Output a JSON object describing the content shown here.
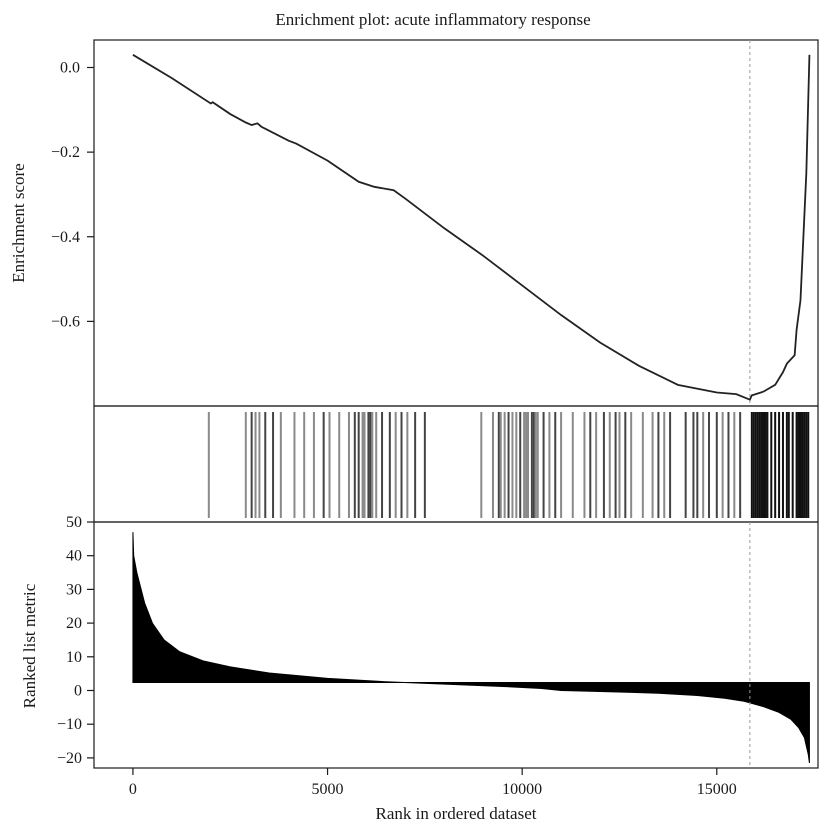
{
  "chart_data": [
    {
      "type": "line",
      "title": "Enrichment plot: acute inflammatory response",
      "ylabel": "Enrichment score",
      "xlim": [
        -1000,
        17600
      ],
      "ylim": [
        -0.8,
        0.065
      ],
      "yticks": [
        "0.0",
        "−0.2",
        "−0.4",
        "−0.6"
      ],
      "ytick_values": [
        0.0,
        -0.2,
        -0.4,
        -0.6
      ],
      "max_deviation_rank": 15850,
      "series": [
        {
          "x": [
            0,
            1000,
            2000,
            2050,
            2500,
            2900,
            3050,
            3200,
            3300,
            4000,
            4200,
            5000,
            5800,
            6200,
            6700,
            7000,
            8000,
            9000,
            10000,
            11000,
            12000,
            13000,
            14000,
            15000,
            15500,
            15850,
            15900,
            16200,
            16500,
            16700,
            16800,
            17000,
            17050,
            17150,
            17200,
            17300,
            17380
          ],
          "y": [
            0.03,
            -0.025,
            -0.085,
            -0.082,
            -0.11,
            -0.13,
            -0.136,
            -0.132,
            -0.14,
            -0.173,
            -0.18,
            -0.22,
            -0.27,
            -0.282,
            -0.29,
            -0.31,
            -0.38,
            -0.445,
            -0.515,
            -0.585,
            -0.65,
            -0.705,
            -0.75,
            -0.768,
            -0.772,
            -0.785,
            -0.775,
            -0.766,
            -0.75,
            -0.72,
            -0.7,
            -0.68,
            -0.62,
            -0.55,
            -0.45,
            -0.25,
            0.03
          ]
        }
      ]
    },
    {
      "type": "scatter",
      "description": "hit-rug",
      "hits": [
        1950,
        2900,
        3050,
        3150,
        3250,
        3400,
        3600,
        3800,
        4150,
        4400,
        4650,
        4900,
        5050,
        5300,
        5550,
        5700,
        5800,
        5900,
        5950,
        6050,
        6100,
        6150,
        6250,
        6400,
        6600,
        6750,
        6900,
        7050,
        7250,
        7500,
        8950,
        9250,
        9400,
        9450,
        9550,
        9650,
        9750,
        9850,
        9950,
        10050,
        10100,
        10150,
        10250,
        10300,
        10350,
        10400,
        10550,
        10700,
        10850,
        11000,
        11300,
        11600,
        11750,
        11900,
        12100,
        12250,
        12400,
        12500,
        12650,
        12800,
        13100,
        13350,
        13500,
        13650,
        13800,
        14200,
        14400,
        14500,
        14650,
        14800,
        15000,
        15150,
        15300,
        15450,
        15600,
        15900,
        15950,
        16000,
        16050,
        16100,
        16150,
        16200,
        16250,
        16300,
        16400,
        16500,
        16600,
        16700,
        16800,
        16850,
        16950,
        17050,
        17100,
        17150,
        17200,
        17250,
        17300,
        17350
      ]
    },
    {
      "type": "area",
      "xlabel": "Rank in ordered dataset",
      "ylabel": "Ranked list metric",
      "xlim": [
        -1000,
        17600
      ],
      "ylim": [
        -23,
        50
      ],
      "xticks": [
        "0",
        "5000",
        "10000",
        "15000"
      ],
      "xtick_values": [
        0,
        5000,
        10000,
        15000
      ],
      "yticks": [
        "50",
        "40",
        "30",
        "20",
        "10",
        "0",
        "−10",
        "−20"
      ],
      "ytick_values": [
        50,
        40,
        30,
        20,
        10,
        0,
        -10,
        -20
      ],
      "zero_cross_rank": 11000,
      "x": [
        0,
        20,
        100,
        300,
        500,
        800,
        1200,
        1800,
        2500,
        3500,
        5000,
        6500,
        8000,
        9500,
        10500,
        11000,
        12000,
        13500,
        14500,
        15200,
        15700,
        16200,
        16600,
        16900,
        17100,
        17250,
        17350,
        17380
      ],
      "y": [
        47,
        40,
        35,
        26,
        20,
        15,
        11.5,
        8.8,
        7,
        5.2,
        3.6,
        2.6,
        1.9,
        1.2,
        0.6,
        0,
        -0.3,
        -0.8,
        -1.5,
        -2.3,
        -3.2,
        -4.8,
        -6.5,
        -8.5,
        -11,
        -14,
        -19,
        -21.5
      ]
    }
  ]
}
